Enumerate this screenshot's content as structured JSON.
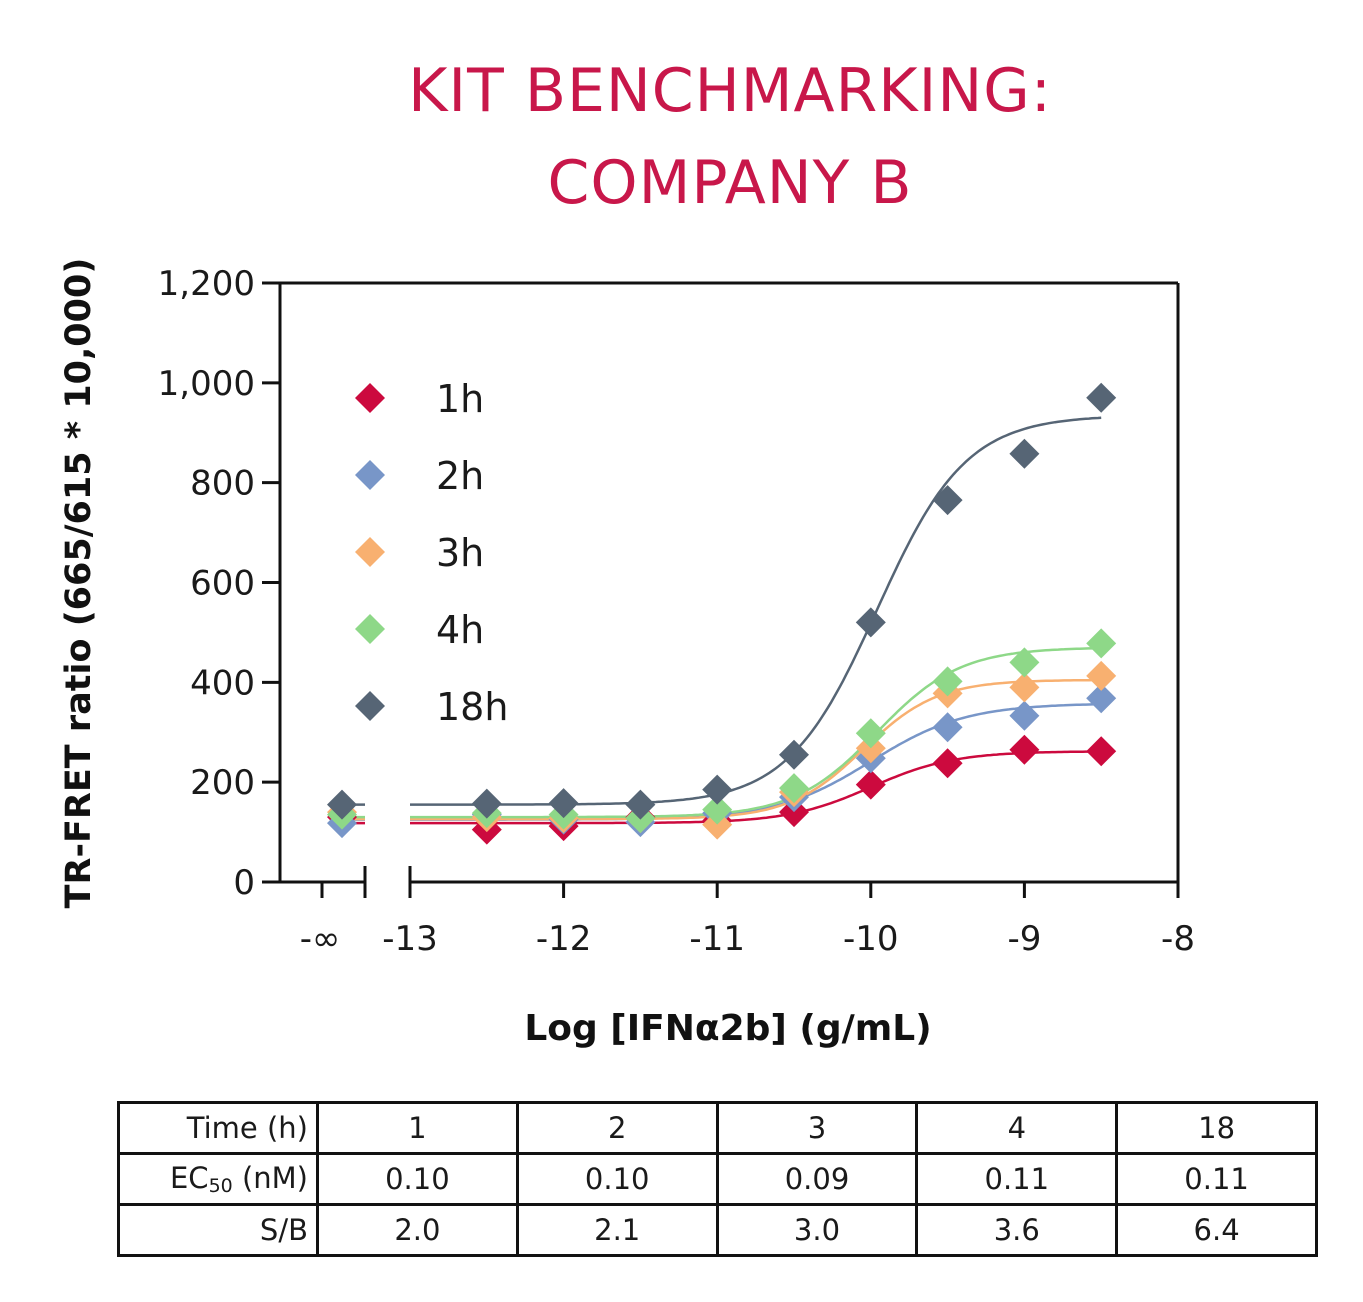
{
  "header": {
    "title_line1": "KIT BENCHMARKING:",
    "title_line2": "COMPANY B"
  },
  "colors": {
    "title": "#c8174a",
    "series_1h": "#cc0a3e",
    "series_2h": "#7896c8",
    "series_3h": "#f8b070",
    "series_4h": "#8ed888",
    "series_18h": "#566575"
  },
  "chart_data": {
    "type": "scatter",
    "xlabel": "Log [IFNα2b] (g/mL)",
    "ylabel": "TR-FRET ratio (665/615 * 10,000)",
    "xlim": [
      -13,
      -8
    ],
    "ylim": [
      0,
      1200
    ],
    "x_ticks": [
      "-13",
      "-12",
      "-11",
      "-10",
      "-9",
      "-8"
    ],
    "y_ticks": [
      "0",
      "200",
      "400",
      "600",
      "800",
      "1,000",
      "1,200"
    ],
    "neg_inf_label": "-∞",
    "legend_position": "top-left",
    "fit": "sigmoidal dose-response curve per series",
    "x": [
      -12.5,
      -12.0,
      -11.5,
      -11.0,
      -10.5,
      -10.0,
      -9.5,
      -9.0,
      -8.5
    ],
    "series": [
      {
        "name": "1h",
        "zero": 130,
        "values": [
          105,
          112,
          130,
          123,
          140,
          195,
          238,
          265,
          262
        ],
        "fit": {
          "bottom": 118,
          "top": 262,
          "log_ec50": -10.0,
          "hill": 1.6
        }
      },
      {
        "name": "2h",
        "zero": 118,
        "values": [
          135,
          125,
          120,
          138,
          170,
          248,
          310,
          333,
          368
        ],
        "fit": {
          "bottom": 125,
          "top": 358,
          "log_ec50": -10.0,
          "hill": 1.4
        }
      },
      {
        "name": "3h",
        "zero": 140,
        "values": [
          130,
          128,
          128,
          115,
          180,
          268,
          378,
          390,
          413
        ],
        "fit": {
          "bottom": 126,
          "top": 405,
          "log_ec50": -10.05,
          "hill": 1.8
        }
      },
      {
        "name": "4h",
        "zero": 135,
        "values": [
          138,
          135,
          128,
          145,
          188,
          298,
          402,
          440,
          478
        ],
        "fit": {
          "bottom": 130,
          "top": 470,
          "log_ec50": -9.96,
          "hill": 1.6
        }
      },
      {
        "name": "18h",
        "zero": 155,
        "values": [
          157,
          158,
          155,
          185,
          255,
          520,
          765,
          858,
          970
        ],
        "fit": {
          "bottom": 155,
          "top": 935,
          "log_ec50": -9.96,
          "hill": 1.5
        }
      }
    ]
  },
  "stats_table": {
    "rows": [
      {
        "label": "Time (h)",
        "values": [
          "1",
          "2",
          "3",
          "4",
          "18"
        ]
      },
      {
        "label_main": "EC",
        "label_sub": "50",
        "label_rest": " (nM)",
        "values": [
          "0.10",
          "0.10",
          "0.09",
          "0.11",
          "0.11"
        ]
      },
      {
        "label": "S/B",
        "values": [
          "2.0",
          "2.1",
          "3.0",
          "3.6",
          "6.4"
        ]
      }
    ]
  }
}
